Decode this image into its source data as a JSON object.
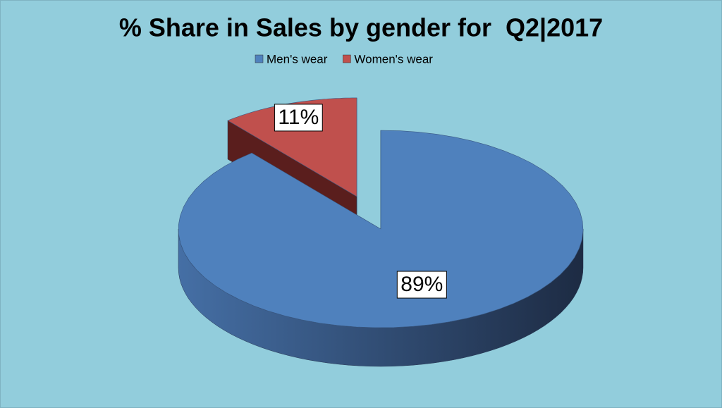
{
  "chart_data": {
    "type": "pie3d",
    "title": "% Share in Sales by gender for  Q2|2017",
    "categories": [
      "Men's wear",
      "Women's wear"
    ],
    "values": [
      89,
      11
    ],
    "value_labels": [
      "89%",
      "11%"
    ],
    "colors": [
      "#4f81bd",
      "#c0504d"
    ],
    "legend": "top"
  }
}
